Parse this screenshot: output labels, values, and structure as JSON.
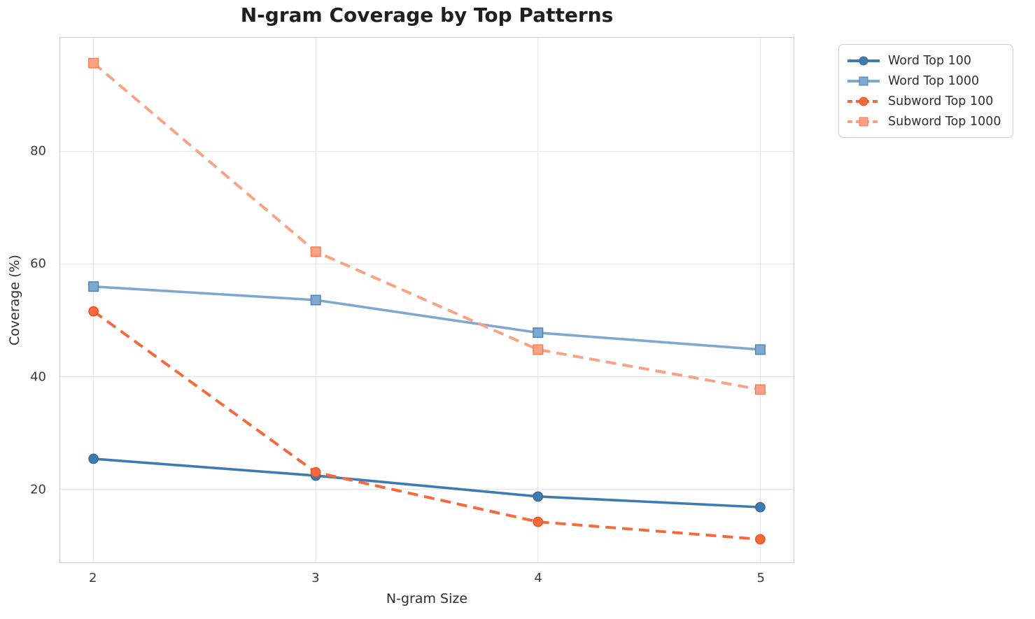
{
  "chart_data": {
    "type": "line",
    "title": "N-gram Coverage by Top Patterns",
    "xlabel": "N-gram Size",
    "ylabel": "Coverage (%)",
    "x": [
      2,
      3,
      4,
      5
    ],
    "series": [
      {
        "name": "Word Top 100",
        "values": [
          25.4,
          22.4,
          18.7,
          16.8
        ],
        "color": "#3e7bb1",
        "marker_edge": "#336a9e",
        "marker": "circle",
        "dash": false
      },
      {
        "name": "Word Top 1000",
        "values": [
          56.0,
          53.6,
          47.8,
          44.8
        ],
        "color": "#7fa8d1",
        "marker_edge": "#4a80b5",
        "marker": "square",
        "dash": false
      },
      {
        "name": "Subword Top 100",
        "values": [
          51.6,
          23.0,
          14.2,
          11.1
        ],
        "color": "#f8693a",
        "marker_edge": "#e05425",
        "marker": "circle",
        "dash": true
      },
      {
        "name": "Subword Top 1000",
        "values": [
          95.7,
          62.2,
          44.8,
          37.7
        ],
        "color": "#fba184",
        "marker_edge": "#f67b4e",
        "marker": "square",
        "dash": true
      }
    ],
    "xticks": [
      2,
      3,
      4,
      5
    ],
    "yticks": [
      20,
      40,
      60,
      80
    ],
    "xlim": [
      1.85,
      5.15
    ],
    "ylim": [
      7.0,
      100.2
    ],
    "grid": true,
    "legend_position": "outside-top-right",
    "grid_color": "#e8e8e8",
    "spine_color": "#cccccc",
    "tick_color": "#3b3b3b",
    "title_color": "#1f1f1f"
  }
}
